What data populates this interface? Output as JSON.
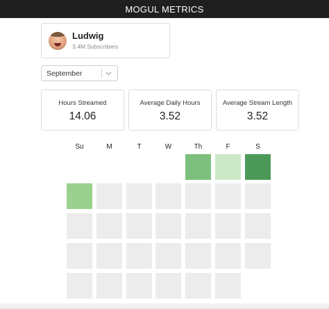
{
  "header": {
    "title": "MOGUL METRICS"
  },
  "profile": {
    "name": "Ludwig",
    "subscribers": "3.4M Subscribers",
    "avatar_icon": "avatar-face"
  },
  "month_select": {
    "value": "September",
    "icon": "chevron-down-icon"
  },
  "stats": [
    {
      "label": "Hours Streamed",
      "value": "14.06"
    },
    {
      "label": "Average Daily Hours",
      "value": "3.52"
    },
    {
      "label": "Average Stream Length",
      "value": "3.52"
    }
  ],
  "calendar": {
    "weekdays": [
      "Su",
      "M",
      "T",
      "W",
      "Th",
      "F",
      "S"
    ],
    "empty_color": "#ececec",
    "active_days": [
      {
        "row": 0,
        "col": 4,
        "color": "#7dbf7d"
      },
      {
        "row": 0,
        "col": 5,
        "color": "#cde8c7"
      },
      {
        "row": 0,
        "col": 6,
        "color": "#4c9a57"
      },
      {
        "row": 1,
        "col": 0,
        "color": "#9bd18f"
      }
    ]
  }
}
